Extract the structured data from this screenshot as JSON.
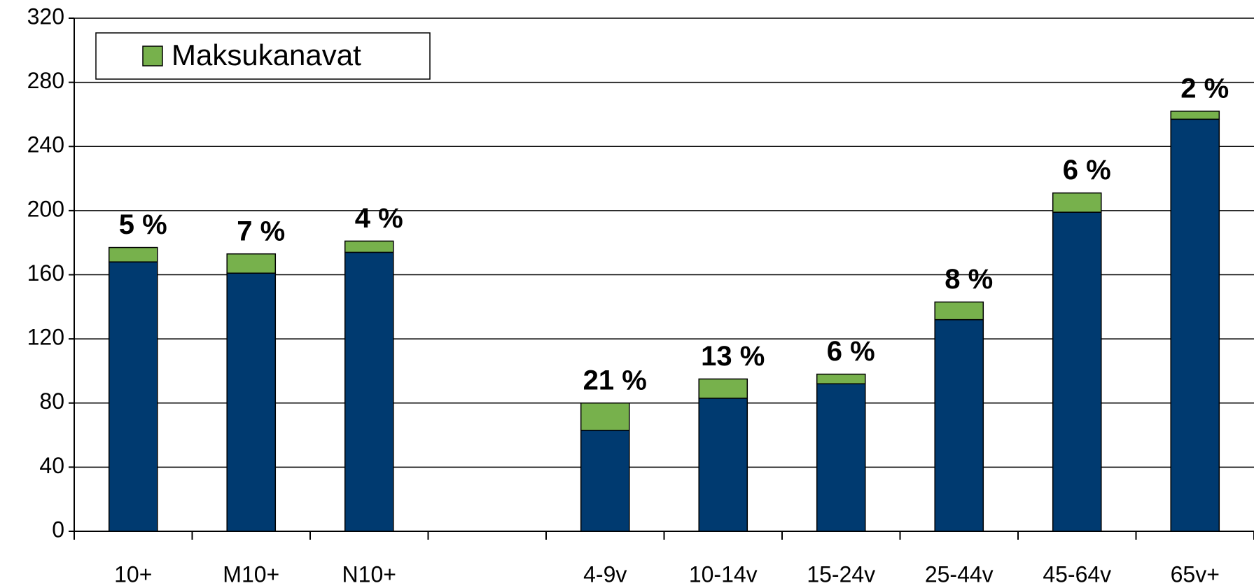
{
  "chart_data": {
    "type": "stacked_bar",
    "categories": [
      "10+",
      "M10+",
      "N10+",
      null,
      "4-9v",
      "10-14v",
      "15-24v",
      "25-44v",
      "45-64v",
      "65v+"
    ],
    "series": [
      {
        "color": "#003a70",
        "values": [
          168,
          161,
          174,
          null,
          63,
          83,
          92,
          132,
          199,
          257
        ]
      },
      {
        "name": "Maksukanavat",
        "color": "#77b14c",
        "values": [
          9,
          12,
          7,
          null,
          17,
          12,
          6,
          11,
          12,
          5
        ]
      }
    ],
    "percent_labels": [
      "5 %",
      "7 %",
      "4 %",
      null,
      "21 %",
      "13 %",
      "6 %",
      "8 %",
      "6 %",
      "2 %"
    ],
    "ylim": [
      0,
      320
    ],
    "yticks": [
      0,
      40,
      80,
      120,
      160,
      200,
      240,
      280,
      320
    ],
    "grid": true,
    "legend": "upper left"
  }
}
